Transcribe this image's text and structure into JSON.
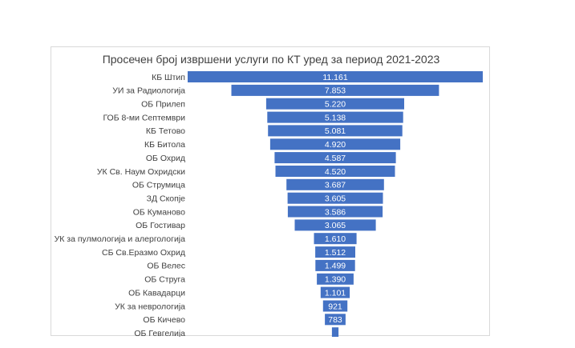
{
  "chart_data": {
    "type": "bar",
    "orientation": "horizontal-centered",
    "title": "Просечен број извршени услуги по КТ уред за период 2021-2023",
    "color": "#4472C4",
    "grid": false,
    "legend": "none",
    "categories": [
      "КБ Штип",
      "УИ за Радиологија",
      "ОБ Прилеп",
      "ГОБ 8-ми Септември",
      "КБ Тетово",
      "КБ Битола",
      "ОБ Охрид",
      "УК Св. Наум Охридски",
      "ОБ Струмица",
      "ЗД Скопје",
      "ОБ Куманово",
      "ОБ Гостивар",
      "УК за пулмологија и алергологија",
      "СБ Св.Еразмо Охрид",
      "ОБ Велес",
      "ОБ Струга",
      "ОБ Кавадарци",
      "УК за неврологија",
      "ОБ Кичево",
      "ОБ Гевгелија"
    ],
    "values": [
      11161,
      7853,
      5220,
      5138,
      5081,
      4920,
      4587,
      4520,
      3687,
      3605,
      3586,
      3065,
      1610,
      1512,
      1499,
      1390,
      1101,
      921,
      783,
      250
    ],
    "labels": [
      "11.161",
      "7.853",
      "5.220",
      "5.138",
      "5.081",
      "4.920",
      "4.587",
      "4.520",
      "3.687",
      "3.605",
      "3.586",
      "3.065",
      "1.610",
      "1.512",
      "1.499",
      "1.390",
      "1.101",
      "921",
      "783",
      ""
    ]
  }
}
